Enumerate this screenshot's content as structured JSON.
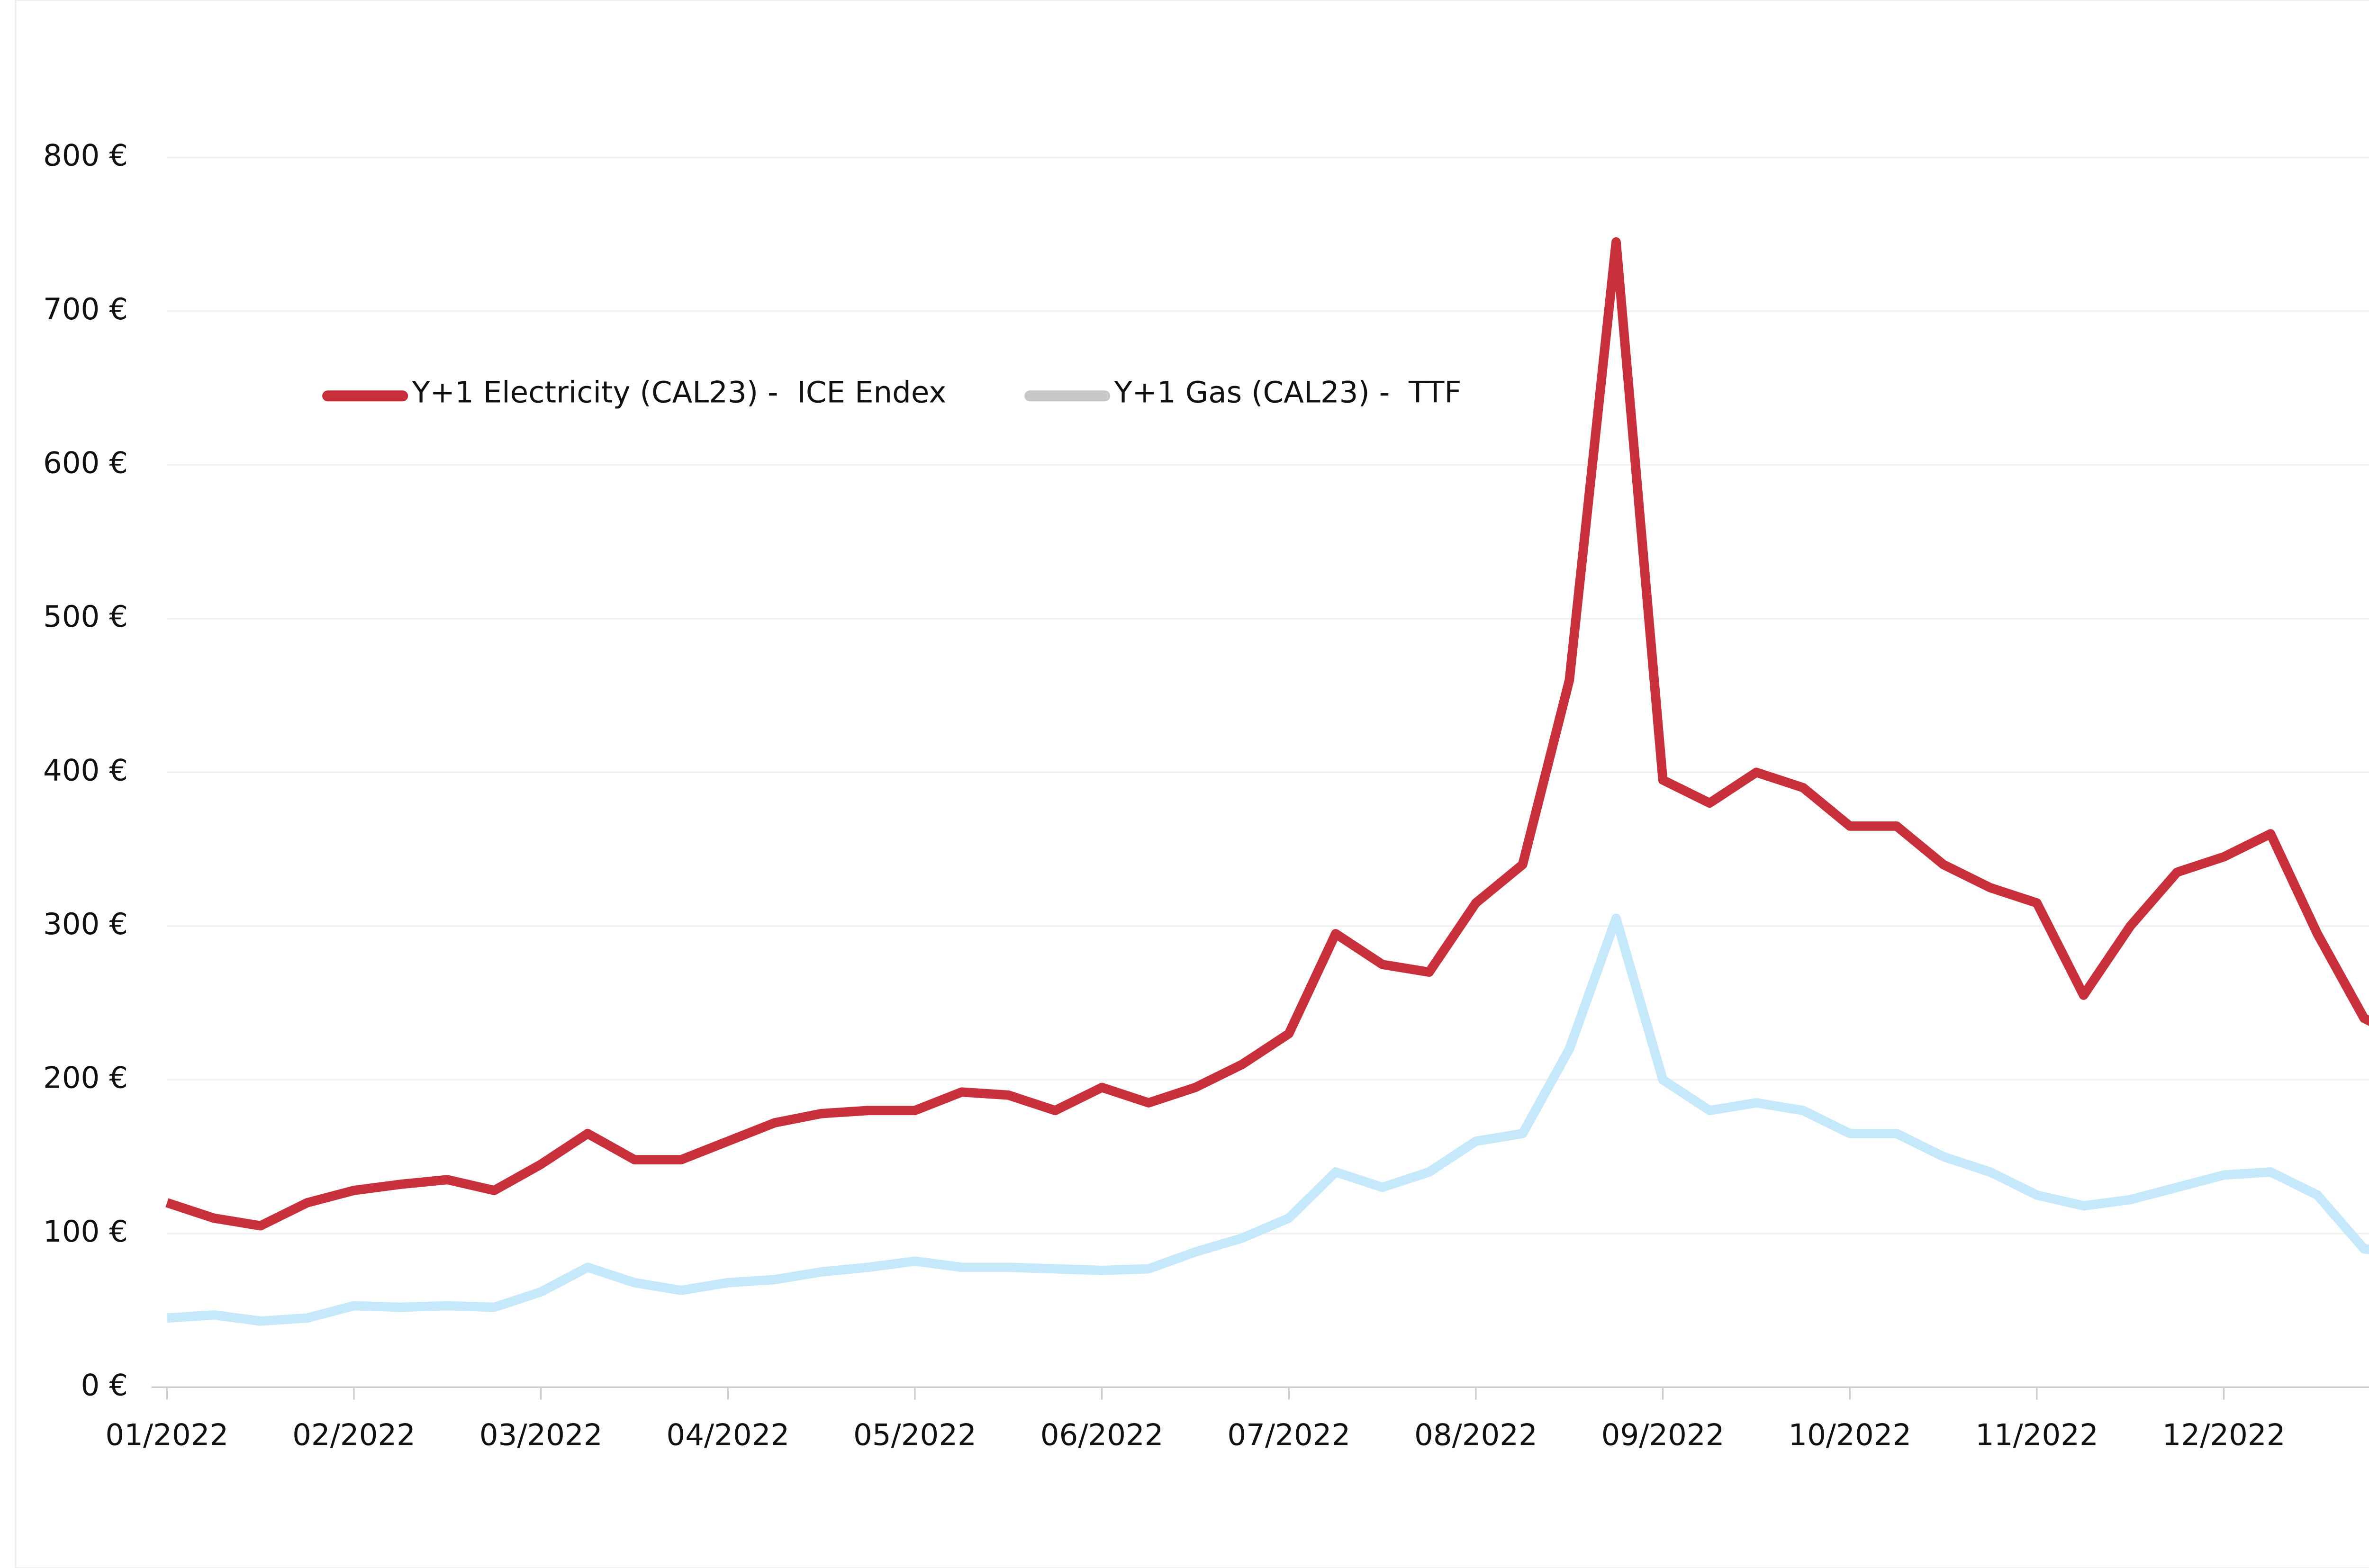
{
  "chart_data": {
    "type": "line",
    "categories": [
      "01/2022",
      null,
      null,
      null,
      "02/2022",
      null,
      null,
      null,
      "03/2022",
      null,
      null,
      null,
      "04/2022",
      null,
      null,
      null,
      "05/2022",
      null,
      null,
      null,
      "06/2022",
      null,
      null,
      null,
      "07/2022",
      null,
      null,
      null,
      "08/2022",
      null,
      null,
      null,
      "09/2022",
      null,
      null,
      null,
      "10/2022",
      null,
      null,
      null,
      "11/2022",
      null,
      null,
      null,
      "12/2022",
      null,
      null,
      null,
      null
    ],
    "series": [
      {
        "name": "Y+1 Electricity (CAL23) -  ICE Endex",
        "color": "#c8303c",
        "legend_color": "#c8303c",
        "values": [
          120,
          110,
          105,
          120,
          128,
          132,
          135,
          128,
          145,
          165,
          148,
          148,
          160,
          172,
          178,
          180,
          180,
          192,
          190,
          180,
          195,
          185,
          195,
          210,
          230,
          295,
          275,
          270,
          315,
          340,
          460,
          745,
          395,
          380,
          400,
          390,
          365,
          365,
          340,
          325,
          315,
          255,
          300,
          335,
          345,
          360,
          295,
          240,
          225
        ]
      },
      {
        "name": "Y+1 Gas (CAL23) -  TTF",
        "color": "#c5e8fb",
        "legend_color": "#c8c8c8",
        "values": [
          45,
          47,
          43,
          45,
          53,
          52,
          53,
          52,
          62,
          78,
          68,
          63,
          68,
          70,
          75,
          78,
          82,
          78,
          78,
          77,
          76,
          77,
          88,
          97,
          110,
          140,
          130,
          140,
          160,
          165,
          220,
          305,
          200,
          180,
          185,
          180,
          165,
          165,
          150,
          140,
          125,
          118,
          122,
          130,
          138,
          140,
          125,
          90,
          87
        ]
      }
    ],
    "ylim": [
      0,
      800
    ],
    "yticks": [
      {
        "value": 0,
        "label": "0 €"
      },
      {
        "value": 100,
        "label": "100 €"
      },
      {
        "value": 200,
        "label": "200 €"
      },
      {
        "value": 300,
        "label": "300 €"
      },
      {
        "value": 400,
        "label": "400 €"
      },
      {
        "value": 500,
        "label": "500 €"
      },
      {
        "value": 600,
        "label": "600 €"
      },
      {
        "value": 700,
        "label": "700 €"
      },
      {
        "value": 800,
        "label": "800 €"
      }
    ],
    "grid": true
  }
}
